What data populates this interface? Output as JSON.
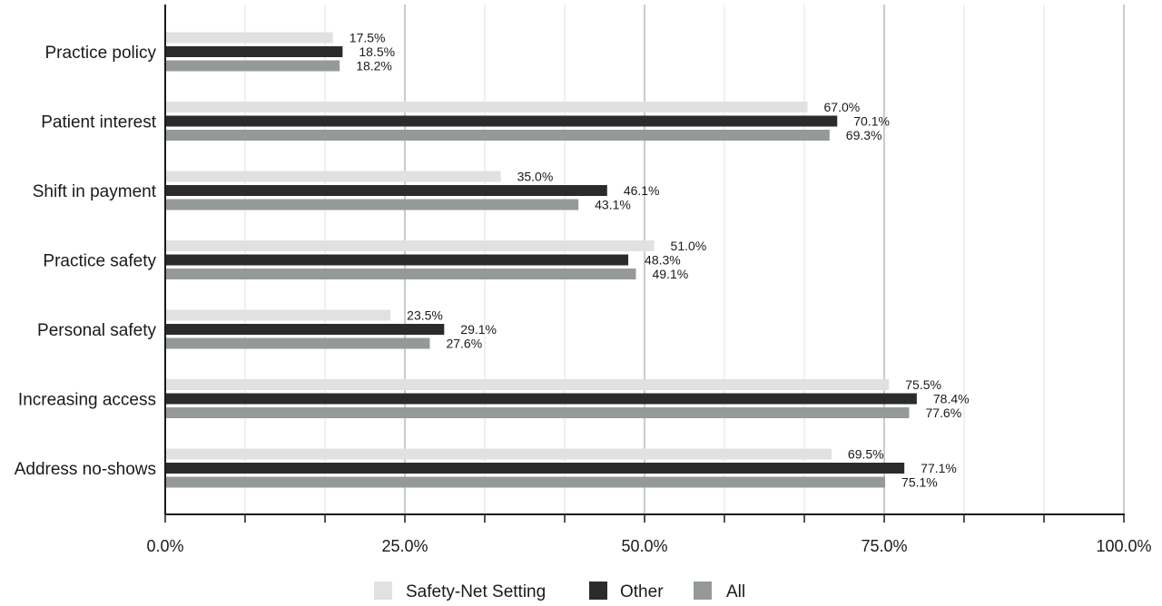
{
  "chart_data": {
    "type": "bar",
    "orientation": "horizontal",
    "categories": [
      "Practice policy",
      "Patient interest",
      "Shift in payment",
      "Practice safety",
      "Personal safety",
      "Increasing access",
      "Address no-shows"
    ],
    "series": [
      {
        "name": "Safety-Net Setting",
        "color": "#e0e2e1",
        "values": [
          17.5,
          67.0,
          35.0,
          51.0,
          23.5,
          75.5,
          69.5
        ],
        "labels": [
          "17.5%",
          "67.0%",
          "35.0%",
          "51.0%",
          "23.5%",
          "75.5%",
          "69.5%"
        ]
      },
      {
        "name": "Other",
        "color": "#2b2b2b",
        "values": [
          18.5,
          70.1,
          46.1,
          48.3,
          29.1,
          78.4,
          77.1
        ],
        "labels": [
          "18.5%",
          "70.1%",
          "46.1%",
          "48.3%",
          "29.1%",
          "78.4%",
          "77.1%"
        ]
      },
      {
        "name": "All",
        "color": "#959a99",
        "values": [
          18.2,
          69.3,
          43.1,
          49.1,
          27.6,
          77.6,
          75.1
        ],
        "labels": [
          "18.2%",
          "69.3%",
          "43.1%",
          "49.1%",
          "27.6%",
          "77.6%",
          "75.1%"
        ]
      }
    ],
    "xlim": [
      0,
      100
    ],
    "xticks": [
      0,
      25,
      50,
      75,
      100
    ],
    "xtick_labels": [
      "0.0%",
      "25.0%",
      "50.0%",
      "75.0%",
      "100.0%"
    ],
    "minor_gridlines": [
      8.33,
      16.67,
      33.33,
      41.67,
      58.33,
      66.67,
      83.33,
      91.67
    ],
    "title": "",
    "xlabel": "",
    "ylabel": "",
    "grid": true,
    "legend_position": "bottom"
  }
}
